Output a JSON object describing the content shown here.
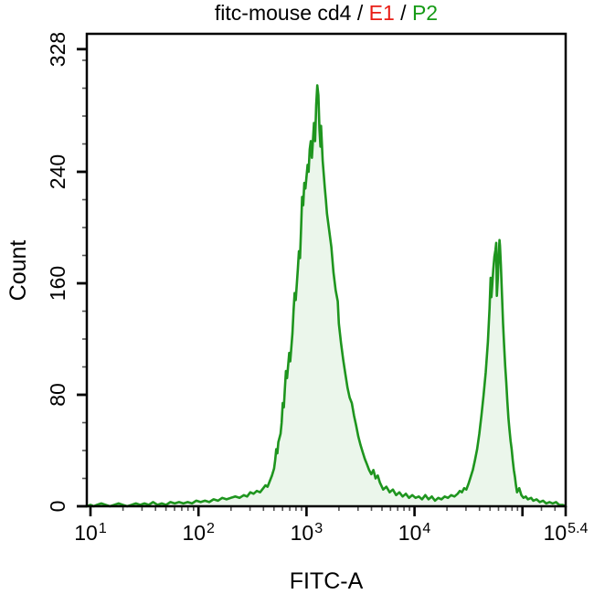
{
  "title": {
    "parts": [
      {
        "text": "fitc-mouse cd4 / ",
        "color": "#000000"
      },
      {
        "text": "E1",
        "color": "#e81d15"
      },
      {
        "text": " / ",
        "color": "#000000"
      },
      {
        "text": "P2",
        "color": "#159a15"
      }
    ]
  },
  "chart_data": {
    "type": "area",
    "subtype": "flow-cytometry-histogram",
    "title": "fitc-mouse cd4 / E1 / P2",
    "xlabel": "FITC-A",
    "ylabel": "Count",
    "x_scale": "log10",
    "xlim_log": [
      0.966,
      5.4
    ],
    "ylim": [
      0,
      339
    ],
    "grid": false,
    "legend": "none",
    "line_color": "#1e951e",
    "fill_color": "rgba(34,150,34,0.09)",
    "axis_color": "#000000",
    "minor_tick_color": "#555555",
    "x_major_ticks": [
      {
        "log": 1.0,
        "base": "10",
        "exp": "1",
        "labeled": true
      },
      {
        "log": 2.0,
        "base": "10",
        "exp": "2",
        "labeled": true
      },
      {
        "log": 3.0,
        "base": "10",
        "exp": "3",
        "labeled": true
      },
      {
        "log": 4.0,
        "base": "10",
        "exp": "4",
        "labeled": true
      },
      {
        "log": 5.0,
        "base": "10",
        "exp": "5",
        "labeled": false
      },
      {
        "log": 5.4,
        "base": "10",
        "exp": "5.4",
        "labeled": true
      }
    ],
    "x_minor_extra_logs": [
      5.176,
      5.301
    ],
    "y_major_ticks": [
      {
        "value": 0,
        "label": "0"
      },
      {
        "value": 80,
        "label": "80"
      },
      {
        "value": 160,
        "label": "160"
      },
      {
        "value": 240,
        "label": "240"
      },
      {
        "value": 328,
        "label": "328"
      }
    ],
    "y_minor_ticks": [
      20,
      40,
      60,
      100,
      120,
      140,
      180,
      200,
      220,
      260,
      280,
      300,
      320
    ],
    "peaks": [
      {
        "mode_log10_x": 3.1,
        "mode_x_approx": 1260,
        "mode_count": 302
      },
      {
        "mode_log10_x": 4.79,
        "mode_x_approx": 61000,
        "mode_count": 191
      }
    ],
    "points": [
      [
        0.97,
        0
      ],
      [
        1.0,
        1
      ],
      [
        1.03,
        0
      ],
      [
        1.06,
        1
      ],
      [
        1.1,
        2
      ],
      [
        1.14,
        1
      ],
      [
        1.18,
        0
      ],
      [
        1.22,
        1
      ],
      [
        1.26,
        2
      ],
      [
        1.3,
        1
      ],
      [
        1.34,
        0
      ],
      [
        1.38,
        1
      ],
      [
        1.42,
        2
      ],
      [
        1.46,
        1
      ],
      [
        1.5,
        2
      ],
      [
        1.54,
        1
      ],
      [
        1.58,
        3
      ],
      [
        1.62,
        1
      ],
      [
        1.66,
        2
      ],
      [
        1.7,
        1
      ],
      [
        1.74,
        3
      ],
      [
        1.78,
        2
      ],
      [
        1.82,
        3
      ],
      [
        1.86,
        2
      ],
      [
        1.9,
        3
      ],
      [
        1.94,
        2
      ],
      [
        1.98,
        4
      ],
      [
        2.02,
        3
      ],
      [
        2.06,
        4
      ],
      [
        2.1,
        3
      ],
      [
        2.14,
        5
      ],
      [
        2.18,
        4
      ],
      [
        2.22,
        6
      ],
      [
        2.26,
        5
      ],
      [
        2.3,
        6
      ],
      [
        2.34,
        7
      ],
      [
        2.38,
        6
      ],
      [
        2.42,
        8
      ],
      [
        2.45,
        7
      ],
      [
        2.48,
        10
      ],
      [
        2.51,
        9
      ],
      [
        2.54,
        11
      ],
      [
        2.57,
        10
      ],
      [
        2.6,
        13
      ],
      [
        2.62,
        15
      ],
      [
        2.64,
        14
      ],
      [
        2.66,
        18
      ],
      [
        2.68,
        22
      ],
      [
        2.7,
        27
      ],
      [
        2.71,
        33
      ],
      [
        2.72,
        41
      ],
      [
        2.73,
        38
      ],
      [
        2.74,
        46
      ],
      [
        2.76,
        52
      ],
      [
        2.77,
        60
      ],
      [
        2.78,
        74
      ],
      [
        2.79,
        71
      ],
      [
        2.8,
        84
      ],
      [
        2.81,
        97
      ],
      [
        2.82,
        92
      ],
      [
        2.84,
        110
      ],
      [
        2.85,
        104
      ],
      [
        2.87,
        124
      ],
      [
        2.88,
        140
      ],
      [
        2.89,
        153
      ],
      [
        2.9,
        148
      ],
      [
        2.92,
        170
      ],
      [
        2.93,
        183
      ],
      [
        2.94,
        178
      ],
      [
        2.95,
        200
      ],
      [
        2.96,
        222
      ],
      [
        2.97,
        216
      ],
      [
        2.98,
        232
      ],
      [
        2.99,
        228
      ],
      [
        3.01,
        245
      ],
      [
        3.02,
        240
      ],
      [
        3.03,
        256
      ],
      [
        3.04,
        262
      ],
      [
        3.05,
        250
      ],
      [
        3.07,
        275
      ],
      [
        3.08,
        262
      ],
      [
        3.09,
        288
      ],
      [
        3.1,
        302
      ],
      [
        3.11,
        295
      ],
      [
        3.12,
        270
      ],
      [
        3.13,
        258
      ],
      [
        3.135,
        273
      ],
      [
        3.14,
        265
      ],
      [
        3.15,
        248
      ],
      [
        3.16,
        238
      ],
      [
        3.17,
        228
      ],
      [
        3.18,
        220
      ],
      [
        3.19,
        210
      ],
      [
        3.21,
        198
      ],
      [
        3.23,
        186
      ],
      [
        3.25,
        168
      ],
      [
        3.27,
        155
      ],
      [
        3.29,
        147
      ],
      [
        3.3,
        131
      ],
      [
        3.32,
        117
      ],
      [
        3.34,
        105
      ],
      [
        3.36,
        95
      ],
      [
        3.38,
        85
      ],
      [
        3.4,
        78
      ],
      [
        3.42,
        74
      ],
      [
        3.44,
        65
      ],
      [
        3.46,
        58
      ],
      [
        3.48,
        50
      ],
      [
        3.5,
        44
      ],
      [
        3.52,
        39
      ],
      [
        3.54,
        34
      ],
      [
        3.56,
        30
      ],
      [
        3.58,
        26
      ],
      [
        3.6,
        23
      ],
      [
        3.62,
        26
      ],
      [
        3.64,
        20
      ],
      [
        3.66,
        22
      ],
      [
        3.68,
        17
      ],
      [
        3.71,
        12
      ],
      [
        3.74,
        14
      ],
      [
        3.77,
        10
      ],
      [
        3.8,
        12
      ],
      [
        3.83,
        8
      ],
      [
        3.86,
        10
      ],
      [
        3.89,
        7
      ],
      [
        3.92,
        9
      ],
      [
        3.95,
        6
      ],
      [
        3.98,
        8
      ],
      [
        4.01,
        6
      ],
      [
        4.04,
        7
      ],
      [
        4.07,
        5
      ],
      [
        4.1,
        8
      ],
      [
        4.13,
        5
      ],
      [
        4.16,
        7
      ],
      [
        4.19,
        4
      ],
      [
        4.22,
        6
      ],
      [
        4.25,
        5
      ],
      [
        4.28,
        7
      ],
      [
        4.31,
        6
      ],
      [
        4.34,
        8
      ],
      [
        4.37,
        7
      ],
      [
        4.4,
        9
      ],
      [
        4.42,
        11
      ],
      [
        4.44,
        10
      ],
      [
        4.46,
        13
      ],
      [
        4.48,
        12
      ],
      [
        4.5,
        16
      ],
      [
        4.52,
        21
      ],
      [
        4.54,
        26
      ],
      [
        4.56,
        33
      ],
      [
        4.58,
        41
      ],
      [
        4.6,
        52
      ],
      [
        4.62,
        65
      ],
      [
        4.64,
        80
      ],
      [
        4.66,
        96
      ],
      [
        4.68,
        118
      ],
      [
        4.695,
        142
      ],
      [
        4.705,
        164
      ],
      [
        4.712,
        150
      ],
      [
        4.72,
        158
      ],
      [
        4.73,
        170
      ],
      [
        4.74,
        179
      ],
      [
        4.75,
        184
      ],
      [
        4.757,
        189
      ],
      [
        4.763,
        151
      ],
      [
        4.771,
        163
      ],
      [
        4.78,
        180
      ],
      [
        4.787,
        191
      ],
      [
        4.792,
        187
      ],
      [
        4.8,
        173
      ],
      [
        4.81,
        152
      ],
      [
        4.82,
        131
      ],
      [
        4.83,
        116
      ],
      [
        4.84,
        101
      ],
      [
        4.85,
        89
      ],
      [
        4.86,
        75
      ],
      [
        4.87,
        63
      ],
      [
        4.88,
        55
      ],
      [
        4.89,
        47
      ],
      [
        4.9,
        41
      ],
      [
        4.91,
        33
      ],
      [
        4.92,
        26
      ],
      [
        4.93,
        21
      ],
      [
        4.94,
        15
      ],
      [
        4.95,
        10
      ],
      [
        4.97,
        13
      ],
      [
        4.99,
        8
      ],
      [
        5.01,
        6
      ],
      [
        5.03,
        7
      ],
      [
        5.05,
        5
      ],
      [
        5.08,
        6
      ],
      [
        5.1,
        4
      ],
      [
        5.13,
        5
      ],
      [
        5.16,
        3
      ],
      [
        5.19,
        4
      ],
      [
        5.22,
        2
      ],
      [
        5.25,
        3
      ],
      [
        5.28,
        2
      ],
      [
        5.31,
        3
      ],
      [
        5.34,
        1
      ],
      [
        5.37,
        1
      ],
      [
        5.4,
        0
      ]
    ]
  }
}
